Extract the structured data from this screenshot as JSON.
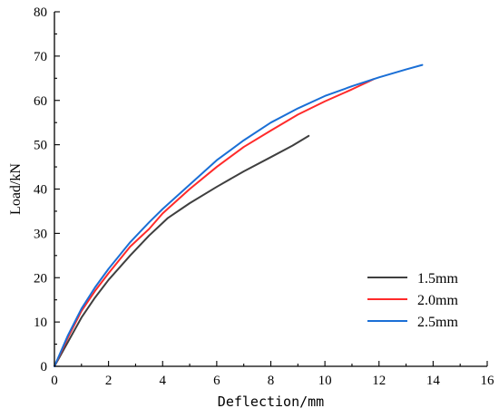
{
  "chart_data": {
    "type": "line",
    "title": "",
    "xlabel": "Deflection/mm",
    "ylabel": "Load/kN",
    "xlim": [
      0,
      16
    ],
    "ylim": [
      0,
      80
    ],
    "xticks": [
      0,
      2,
      4,
      6,
      8,
      10,
      12,
      14,
      16
    ],
    "yticks": [
      0,
      10,
      20,
      30,
      40,
      50,
      60,
      70,
      80
    ],
    "grid": false,
    "legend_position": "lower-right",
    "series": [
      {
        "name": "1.5mm",
        "color": "#3f3f3f",
        "x": [
          0,
          0.5,
          1.0,
          1.5,
          2.0,
          2.8,
          3.5,
          4.2,
          5.0,
          6.0,
          7.0,
          8.0,
          8.8,
          9.4
        ],
        "y": [
          0,
          5.5,
          11.0,
          15.5,
          19.5,
          25.0,
          29.5,
          33.5,
          36.8,
          40.5,
          44.0,
          47.2,
          49.8,
          52.0
        ]
      },
      {
        "name": "2.0mm",
        "color": "#ff2a2a",
        "x": [
          0,
          0.5,
          1.0,
          1.5,
          2.0,
          2.8,
          3.5,
          4.0,
          5.0,
          6.0,
          7.0,
          8.0,
          9.0,
          10.0,
          11.0,
          11.8
        ],
        "y": [
          0,
          6.5,
          12.5,
          17.0,
          21.0,
          27.0,
          31.0,
          34.5,
          40.0,
          45.0,
          49.5,
          53.2,
          56.8,
          59.8,
          62.5,
          64.8
        ]
      },
      {
        "name": "2.5mm",
        "color": "#1a6fd6",
        "x": [
          0,
          0.5,
          1.0,
          1.5,
          2.0,
          2.8,
          3.5,
          4.0,
          5.0,
          6.0,
          7.0,
          8.0,
          9.0,
          10.0,
          11.0,
          12.0,
          13.0,
          13.6
        ],
        "y": [
          0,
          7.0,
          13.0,
          17.8,
          22.0,
          28.0,
          32.5,
          35.5,
          41.0,
          46.5,
          51.0,
          55.0,
          58.2,
          61.0,
          63.2,
          65.2,
          67.0,
          68.0
        ]
      }
    ]
  }
}
